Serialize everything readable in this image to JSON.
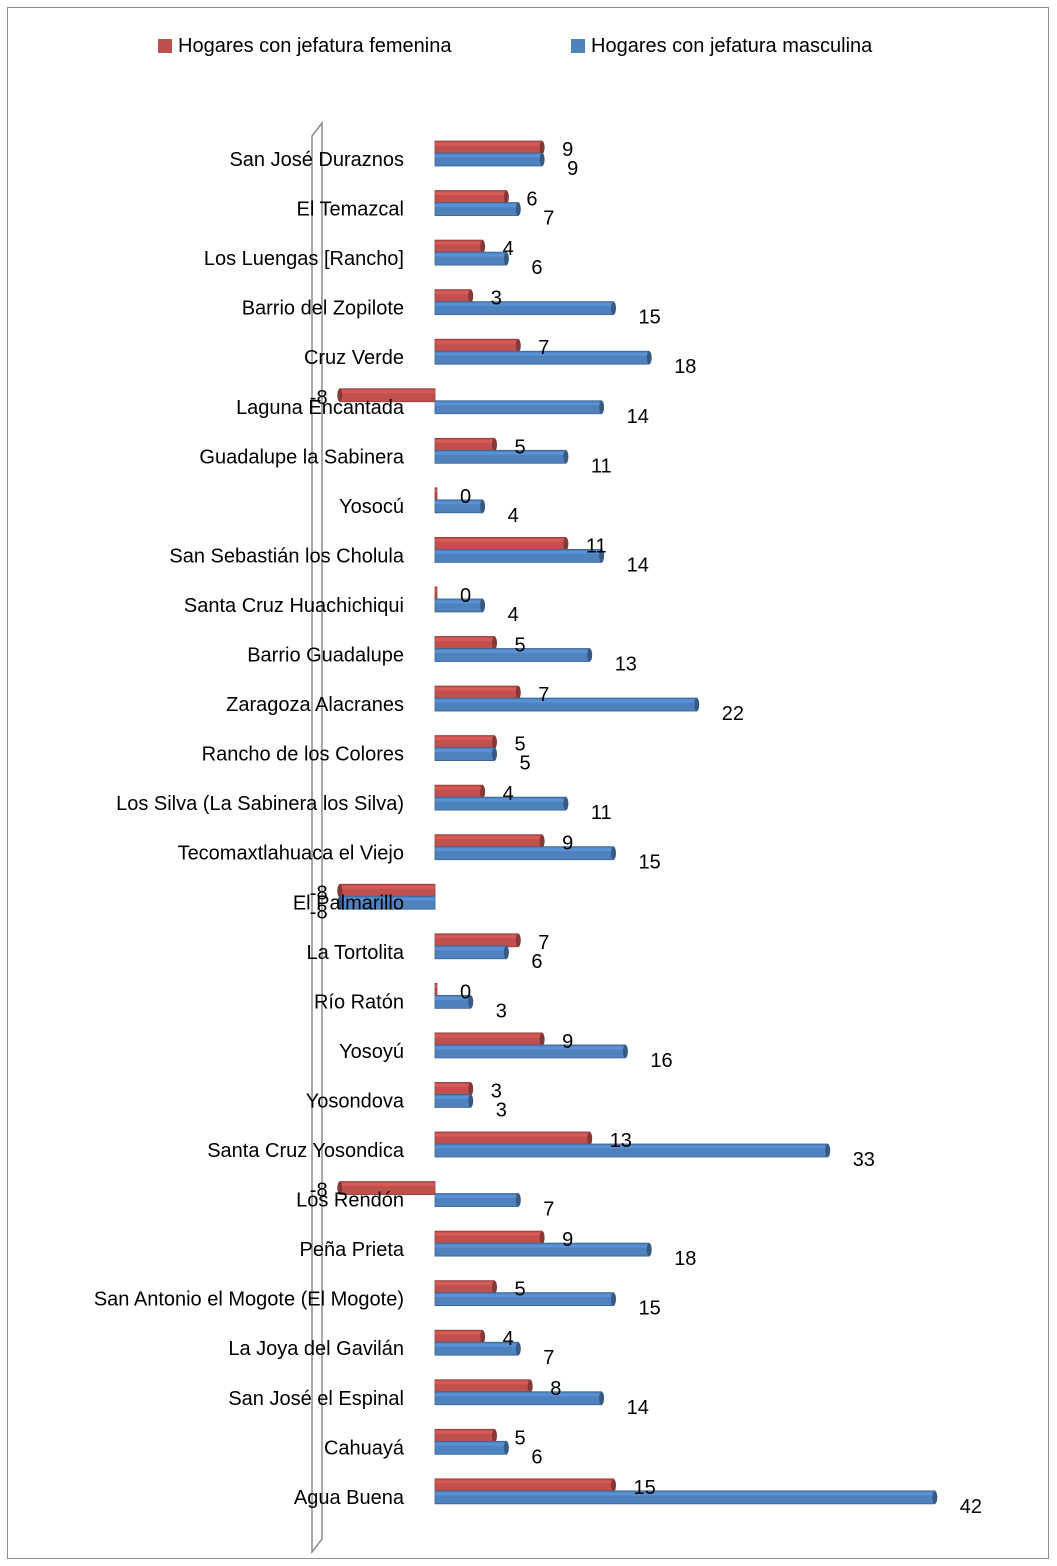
{
  "chart_data": {
    "type": "bar",
    "orientation": "horizontal",
    "legend_position": "top",
    "grid": false,
    "categories": [
      "San José Duraznos",
      "El Temazcal",
      "Los Luengas [Rancho]",
      "Barrio del Zopilote",
      "Cruz Verde",
      "Laguna Encantada",
      "Guadalupe la Sabinera",
      "Yosocú",
      "San Sebastián los Cholula",
      "Santa Cruz Huachichiqui",
      "Barrio Guadalupe",
      "Zaragoza Alacranes",
      "Rancho de los Colores",
      "Los Silva (La Sabinera los Silva)",
      "Tecomaxtlahuaca el Viejo",
      "El Palmarillo",
      "La Tortolita",
      "Río Ratón",
      "Yosoyú",
      "Yosondova",
      "Santa Cruz Yosondica",
      "Los Rendón",
      "Peña Prieta",
      "San Antonio el Mogote (El Mogote)",
      "La Joya del Gavilán",
      "San José el Espinal",
      "Cahuayá",
      "Agua Buena"
    ],
    "series": [
      {
        "name": "Hogares con jefatura femenina",
        "color": "#c0504d",
        "values": [
          9,
          6,
          4,
          3,
          7,
          -8,
          5,
          0,
          11,
          0,
          5,
          7,
          5,
          4,
          9,
          -8,
          7,
          0,
          9,
          3,
          13,
          -8,
          9,
          5,
          4,
          8,
          5,
          15
        ]
      },
      {
        "name": "Hogares con jefatura masculina",
        "color": "#4f81bd",
        "values": [
          9,
          7,
          6,
          15,
          18,
          14,
          11,
          4,
          14,
          4,
          13,
          22,
          5,
          11,
          15,
          -8,
          6,
          3,
          16,
          3,
          33,
          7,
          18,
          15,
          7,
          14,
          6,
          42
        ]
      }
    ],
    "title": "",
    "xlabel": "",
    "ylabel": ""
  }
}
